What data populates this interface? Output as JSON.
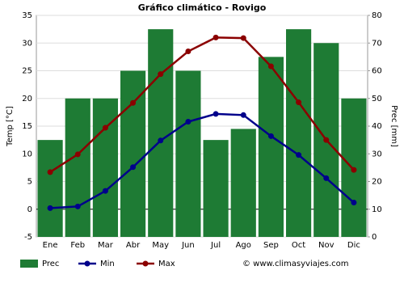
{
  "chart_data": {
    "type": "climate",
    "title": "Gráfico climático - Rovigo",
    "y_label": "Temp [°C]",
    "y2_label": "Prec [mm]",
    "watermark": "© www.climasyviajes.com",
    "categories": [
      "Ene",
      "Feb",
      "Mar",
      "Abr",
      "May",
      "Jun",
      "Jul",
      "Ago",
      "Sep",
      "Oct",
      "Nov",
      "Dic"
    ],
    "series": [
      {
        "name": "Prec",
        "kind": "bar",
        "axis": "y2",
        "color": "#1e7b34",
        "values": [
          35,
          50,
          50,
          60,
          75,
          60,
          35,
          39,
          65,
          75,
          70,
          50
        ]
      },
      {
        "name": "Min",
        "kind": "line",
        "color": "#00008b",
        "values": [
          0.2,
          0.5,
          3.3,
          7.6,
          12.4,
          15.8,
          17.2,
          17.0,
          13.2,
          9.8,
          5.6,
          1.2
        ]
      },
      {
        "name": "Max",
        "kind": "line",
        "color": "#8b0000",
        "values": [
          6.7,
          9.9,
          14.7,
          19.2,
          24.4,
          28.5,
          31.0,
          30.9,
          25.8,
          19.3,
          12.5,
          7.1
        ]
      }
    ],
    "ylim": [
      -5,
      35
    ],
    "yticks": [
      -5,
      0,
      5,
      10,
      15,
      20,
      25,
      30,
      35
    ],
    "y2lim": [
      0,
      80
    ],
    "y2ticks": [
      0,
      10,
      20,
      30,
      40,
      50,
      60,
      70,
      80
    ],
    "grid": true
  }
}
